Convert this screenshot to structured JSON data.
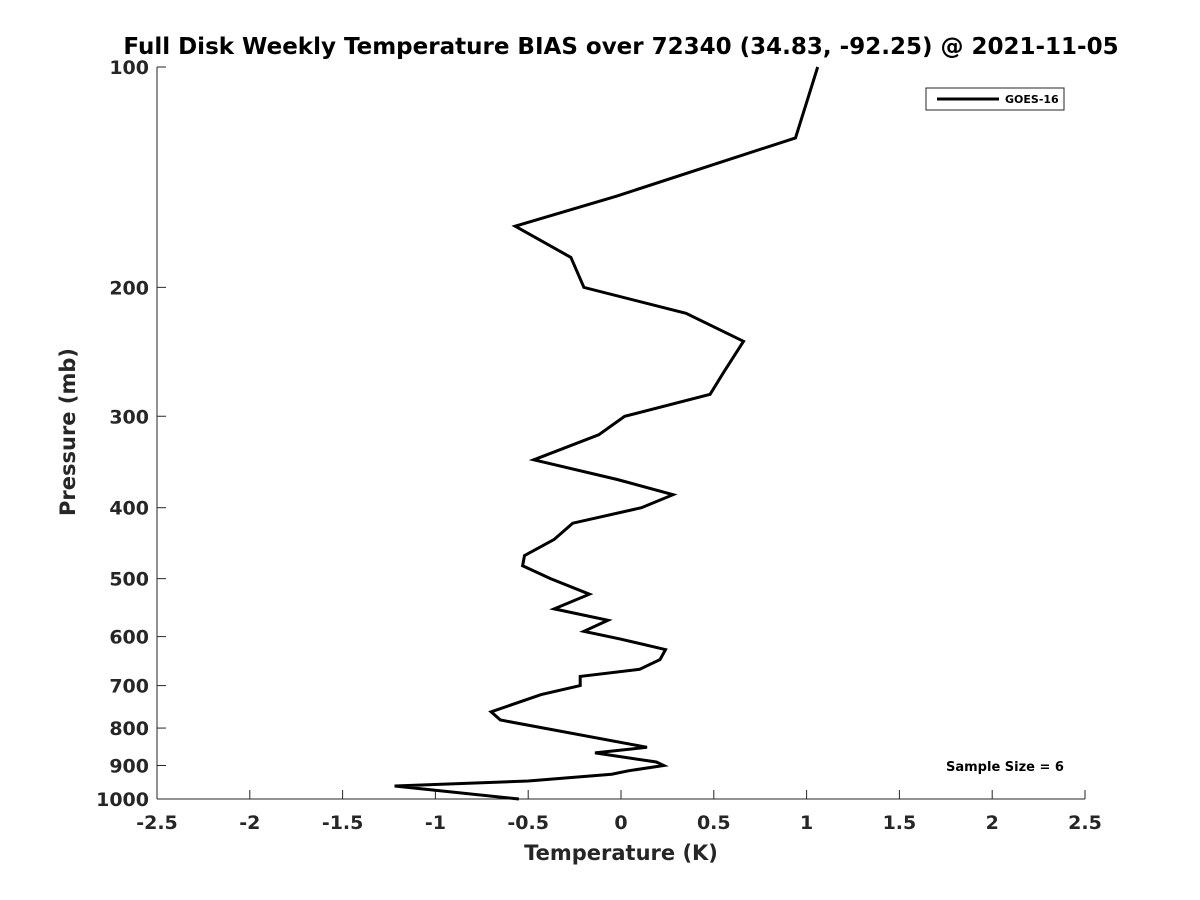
{
  "chart_data": {
    "type": "line",
    "title": "Full Disk Weekly Temperature BIAS over 72340 (34.83, -92.25) @ 2021-11-05",
    "xlabel": "Temperature (K)",
    "ylabel": "Pressure (mb)",
    "xlim": [
      -2.5,
      2.5
    ],
    "ylim": [
      100,
      1000
    ],
    "y_scale": "log",
    "y_reversed": true,
    "x_ticks": [
      -2.5,
      -2,
      -1.5,
      -1,
      -0.5,
      0,
      0.5,
      1,
      1.5,
      2,
      2.5
    ],
    "x_tick_labels": [
      "-2.5",
      "-2",
      "-1.5",
      "-1",
      "-0.5",
      "0",
      "0.5",
      "1",
      "1.5",
      "2",
      "2.5"
    ],
    "y_ticks": [
      100,
      200,
      300,
      400,
      500,
      600,
      700,
      800,
      900,
      1000
    ],
    "y_tick_labels": [
      "100",
      "200",
      "300",
      "400",
      "500",
      "600",
      "700",
      "800",
      "900",
      "1000"
    ],
    "grid": false,
    "legend_position": "top-right",
    "annotation": "Sample Size = 6",
    "series": [
      {
        "name": "GOES-16",
        "color": "#000000",
        "points": [
          {
            "x": 1.06,
            "y": 100
          },
          {
            "x": 0.94,
            "y": 125
          },
          {
            "x": -0.02,
            "y": 150
          },
          {
            "x": -0.57,
            "y": 165
          },
          {
            "x": -0.27,
            "y": 182
          },
          {
            "x": -0.2,
            "y": 200
          },
          {
            "x": 0.35,
            "y": 217
          },
          {
            "x": 0.66,
            "y": 237
          },
          {
            "x": 0.55,
            "y": 262
          },
          {
            "x": 0.48,
            "y": 280
          },
          {
            "x": 0.02,
            "y": 300
          },
          {
            "x": -0.12,
            "y": 318
          },
          {
            "x": -0.47,
            "y": 344
          },
          {
            "x": -0.02,
            "y": 366
          },
          {
            "x": 0.28,
            "y": 384
          },
          {
            "x": 0.11,
            "y": 400
          },
          {
            "x": -0.26,
            "y": 420
          },
          {
            "x": -0.36,
            "y": 442
          },
          {
            "x": -0.52,
            "y": 465
          },
          {
            "x": -0.53,
            "y": 480
          },
          {
            "x": -0.38,
            "y": 500
          },
          {
            "x": -0.17,
            "y": 525
          },
          {
            "x": -0.36,
            "y": 550
          },
          {
            "x": -0.07,
            "y": 570
          },
          {
            "x": -0.2,
            "y": 590
          },
          {
            "x": 0.0,
            "y": 605
          },
          {
            "x": 0.24,
            "y": 625
          },
          {
            "x": 0.21,
            "y": 645
          },
          {
            "x": 0.1,
            "y": 665
          },
          {
            "x": -0.22,
            "y": 680
          },
          {
            "x": -0.22,
            "y": 700
          },
          {
            "x": -0.43,
            "y": 720
          },
          {
            "x": -0.7,
            "y": 760
          },
          {
            "x": -0.65,
            "y": 780
          },
          {
            "x": 0.14,
            "y": 850
          },
          {
            "x": -0.14,
            "y": 865
          },
          {
            "x": 0.19,
            "y": 890
          },
          {
            "x": 0.23,
            "y": 900
          },
          {
            "x": 0.04,
            "y": 915
          },
          {
            "x": -0.05,
            "y": 925
          },
          {
            "x": -0.5,
            "y": 945
          },
          {
            "x": -1.22,
            "y": 960
          },
          {
            "x": -0.55,
            "y": 1000
          }
        ]
      }
    ]
  }
}
